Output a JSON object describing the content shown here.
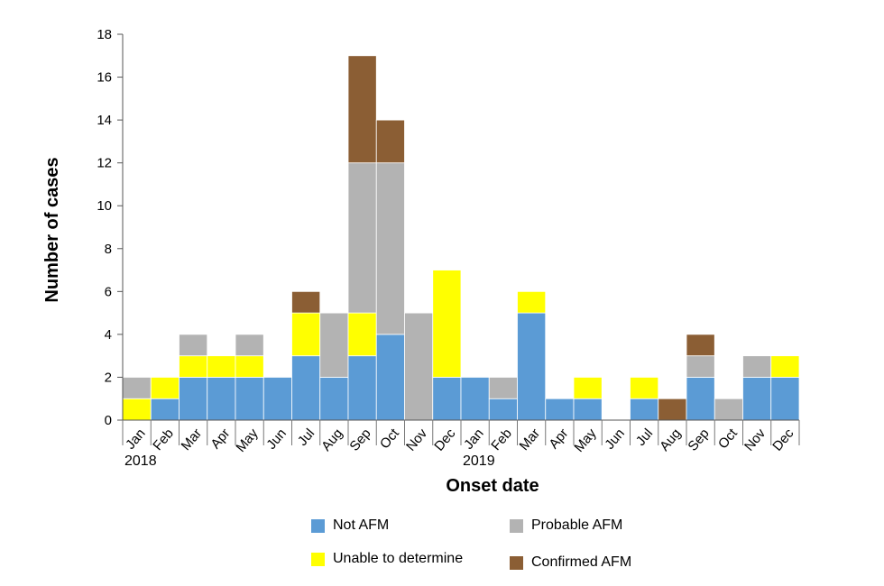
{
  "chart_data": {
    "type": "stacked-bar",
    "ylabel": "Number of cases",
    "xlabel": "Onset date",
    "ylim": [
      0,
      18
    ],
    "yticks": [
      "0",
      "2",
      "4",
      "6",
      "8",
      "10",
      "12",
      "14",
      "16",
      "18"
    ],
    "categories": [
      "Jan",
      "Feb",
      "Mar",
      "Apr",
      "May",
      "Jun",
      "Jul",
      "Aug",
      "Sep",
      "Oct",
      "Nov",
      "Dec",
      "Jan",
      "Feb",
      "Mar",
      "Apr",
      "May",
      "Jun",
      "Jul",
      "Aug",
      "Sep",
      "Oct",
      "Nov",
      "Dec"
    ],
    "years": [
      {
        "label": "2018",
        "start_index": 0
      },
      {
        "label": "2019",
        "start_index": 12
      }
    ],
    "series": [
      {
        "name": "Not AFM",
        "color": "#5b9bd5",
        "values": [
          0,
          1,
          2,
          2,
          2,
          2,
          3,
          2,
          3,
          4,
          0,
          2,
          2,
          1,
          5,
          1,
          1,
          0,
          1,
          0,
          2,
          0,
          2,
          2
        ]
      },
      {
        "name": "Unable to determine",
        "color": "#ffff00",
        "values": [
          1,
          1,
          1,
          1,
          1,
          0,
          2,
          0,
          2,
          0,
          0,
          5,
          0,
          0,
          1,
          0,
          1,
          0,
          1,
          0,
          0,
          0,
          0,
          1
        ]
      },
      {
        "name": "Probable AFM",
        "color": "#b3b3b3",
        "values": [
          1,
          0,
          1,
          0,
          1,
          0,
          0,
          3,
          7,
          8,
          5,
          0,
          0,
          1,
          0,
          0,
          0,
          0,
          0,
          0,
          1,
          1,
          1,
          0
        ]
      },
      {
        "name": "Confirmed AFM",
        "color": "#8b5e34",
        "values": [
          0,
          0,
          0,
          0,
          0,
          0,
          1,
          0,
          5,
          2,
          0,
          0,
          0,
          0,
          0,
          0,
          0,
          0,
          0,
          1,
          1,
          0,
          0,
          0
        ]
      }
    ],
    "legend": {
      "position": "bottom",
      "order": [
        "Not AFM",
        "Probable AFM",
        "Unable to determine",
        "Confirmed AFM"
      ]
    }
  }
}
